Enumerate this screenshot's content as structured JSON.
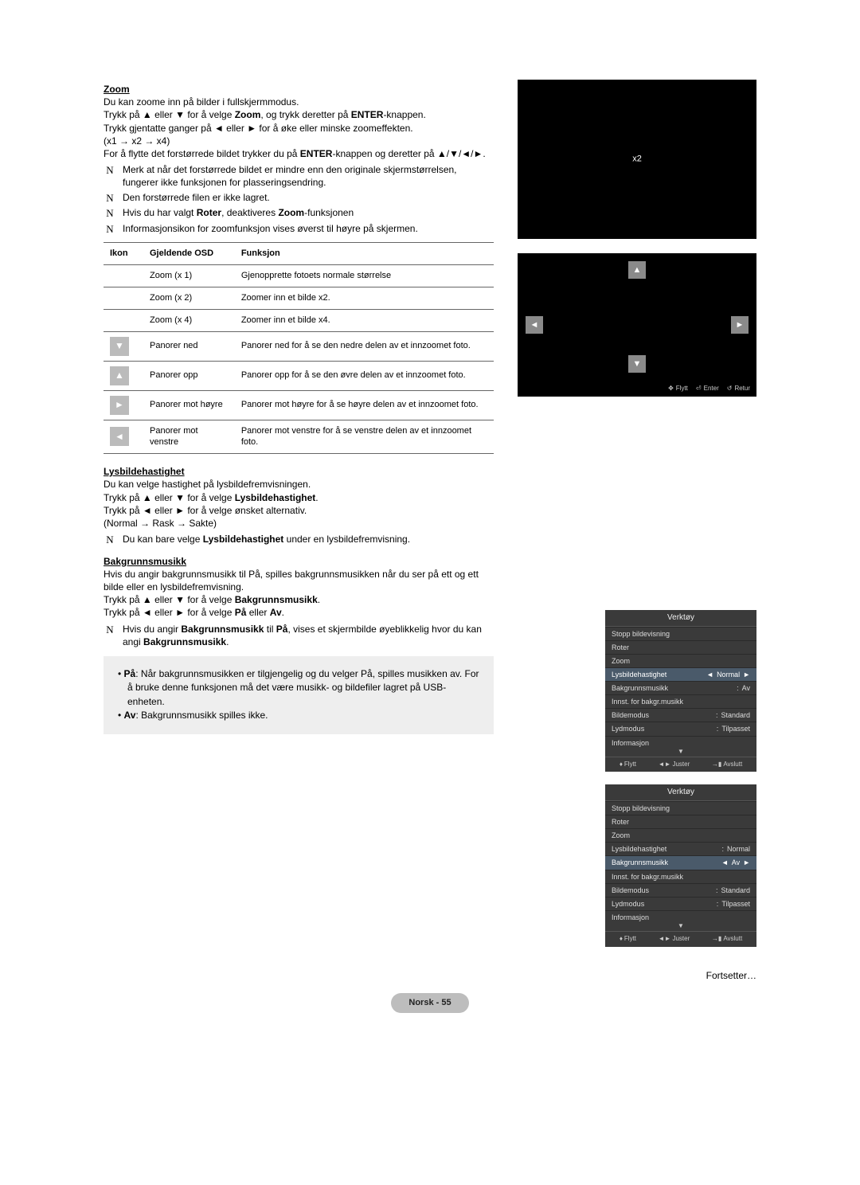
{
  "zoom": {
    "title": "Zoom",
    "intro1": "Du kan zoome inn på bilder i fullskjermmodus.",
    "intro2_a": "Trykk på ▲ eller ▼ for å velge ",
    "intro2_b": "Zoom",
    "intro2_c": ", og trykk deretter på ",
    "intro2_d": "ENTER",
    "intro2_e": "-knappen.",
    "intro3": "Trykk gjentatte ganger på ◄ eller ► for å øke eller minske zoomeffekten.",
    "intro4": "(x1 → x2 → x4)",
    "intro5_a": "For å flytte det forstørrede bildet trykker du på ",
    "intro5_b": "ENTER",
    "intro5_c": "-knappen og deretter på ▲/▼/◄/►.",
    "notes": [
      "Merk at når det forstørrede bildet er mindre enn den originale skjermstørrelsen, fungerer ikke funksjonen for plasseringsendring.",
      "Den forstørrede filen er ikke lagret.",
      "Hvis du har valgt Roter, deaktiveres Zoom-funksjonen",
      "Informasjonsikon for zoomfunksjon vises øverst til høyre på skjermen."
    ],
    "note2_bold1": "Roter",
    "note2_bold2": "Zoom",
    "table_headers": [
      "Ikon",
      "Gjeldende OSD",
      "Funksjon"
    ],
    "table_rows": [
      {
        "icon": "",
        "osd": "Zoom (x 1)",
        "func": "Gjenopprette fotoets normale størrelse"
      },
      {
        "icon": "",
        "osd": "Zoom (x 2)",
        "func": "Zoomer inn et bilde x2."
      },
      {
        "icon": "",
        "osd": "Zoom (x 4)",
        "func": "Zoomer inn et bilde x4."
      },
      {
        "icon": "▼",
        "osd": "Panorer ned",
        "func": "Panorer ned for å se den nedre delen av et innzoomet foto."
      },
      {
        "icon": "▲",
        "osd": "Panorer opp",
        "func": "Panorer opp for å se den øvre delen av et innzoomet foto."
      },
      {
        "icon": "►",
        "osd": "Panorer mot høyre",
        "func": "Panorer mot høyre for å se høyre delen av et innzoomet foto."
      },
      {
        "icon": "◄",
        "osd": "Panorer mot venstre",
        "func": "Panorer mot venstre for å se venstre delen av et innzoomet foto."
      }
    ]
  },
  "slideshow": {
    "title": "Lysbildehastighet",
    "p1": "Du kan velge hastighet på lysbildefremvisningen.",
    "p2_a": "Trykk på ▲ eller ▼ for å velge ",
    "p2_b": "Lysbildehastighet",
    "p2_c": ".",
    "p3": "Trykk på ◄ eller ► for å velge ønsket alternativ.",
    "p4": "(Normal → Rask → Sakte)",
    "note_a": "Du kan bare velge ",
    "note_b": "Lysbildehastighet",
    "note_c": " under en lysbildefremvisning."
  },
  "bgm": {
    "title": "Bakgrunnsmusikk",
    "p1": "Hvis du angir bakgrunnsmusikk til På, spilles bakgrunnsmusikken når du ser på ett og ett bilde eller en lysbildefremvisning.",
    "p2_a": "Trykk på ▲ eller ▼ for å velge ",
    "p2_b": "Bakgrunnsmusikk",
    "p2_c": ".",
    "p3_a": "Trykk på ◄ eller ► for å velge ",
    "p3_b": "På",
    "p3_c": " eller ",
    "p3_d": "Av",
    "p3_e": ".",
    "note_a": "Hvis du angir ",
    "note_b": "Bakgrunnsmusikk",
    "note_c": " til ",
    "note_d": "På",
    "note_e": ", vises et skjermbilde øyeblikkelig hvor du kan angi ",
    "note_f": "Bakgrunnsmusikk",
    "note_g": ".",
    "box_on_label": "På",
    "box_on_text": ": Når bakgrunnsmusikken er tilgjengelig og du velger På, spilles musikken av. For å bruke denne funksjonen må det være musikk- og bildefiler lagret på USB-enheten.",
    "box_off_label": "Av",
    "box_off_text": ": Bakgrunnsmusikk spilles ikke."
  },
  "screens": {
    "zoom_label": "x2",
    "footer_move": "Flytt",
    "footer_enter": "Enter",
    "footer_return": "Retur",
    "tool_title": "Verktøy",
    "items": [
      {
        "label": "Stopp bildevisning",
        "val": ""
      },
      {
        "label": "Roter",
        "val": ""
      },
      {
        "label": "Zoom",
        "val": ""
      },
      {
        "label": "Lysbildehastighet",
        "val": "Normal"
      },
      {
        "label": "Bakgrunnsmusikk",
        "sep": ":",
        "val": "Av"
      },
      {
        "label": "Innst. for bakgr.musikk",
        "val": ""
      },
      {
        "label": "Bildemodus",
        "sep": ":",
        "val": "Standard"
      },
      {
        "label": "Lydmodus",
        "sep": ":",
        "val": "Tilpasset"
      },
      {
        "label": "Informasjon",
        "val": ""
      }
    ],
    "panel2_items": [
      {
        "label": "Stopp bildevisning",
        "val": ""
      },
      {
        "label": "Roter",
        "val": ""
      },
      {
        "label": "Zoom",
        "val": ""
      },
      {
        "label": "Lysbildehastighet",
        "sep": ":",
        "val": "Normal"
      },
      {
        "label": "Bakgrunnsmusikk",
        "val": "Av"
      },
      {
        "label": "Innst. for bakgr.musikk",
        "val": ""
      },
      {
        "label": "Bildemodus",
        "sep": ":",
        "val": "Standard"
      },
      {
        "label": "Lydmodus",
        "sep": ":",
        "val": "Tilpasset"
      },
      {
        "label": "Informasjon",
        "val": ""
      }
    ],
    "tf_move": "Flytt",
    "tf_adjust": "Juster",
    "tf_exit": "Avslutt"
  },
  "footer": {
    "continues": "Fortsetter…",
    "page": "Norsk - 55"
  },
  "glyphs": {
    "note": "N"
  }
}
